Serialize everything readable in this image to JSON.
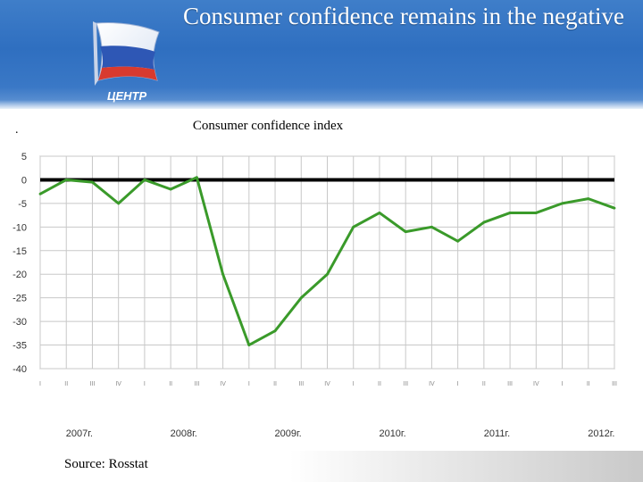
{
  "slide": {
    "title": "Consumer confidence remains in the negative",
    "logo_text": "ЦЕНТР",
    "marker": ".",
    "source": "Source: Rosstat"
  },
  "colors": {
    "header_blue": "#2f6fc0",
    "line_green": "#3a9a2a",
    "zero_line": "#000000",
    "grid": "#c8c8c8"
  },
  "chart_data": {
    "type": "line",
    "title": "Consumer confidence index",
    "xlabel": "",
    "ylabel": "",
    "ylim": [
      -40,
      5
    ],
    "y_ticks": [
      5,
      0,
      -5,
      -10,
      -15,
      -20,
      -25,
      -30,
      -35,
      -40
    ],
    "grid": true,
    "categories": [
      "I",
      "II",
      "III",
      "IV",
      "I",
      "II",
      "III",
      "IV",
      "I",
      "II",
      "III",
      "IV",
      "I",
      "II",
      "III",
      "IV",
      "I",
      "II",
      "III",
      "IV",
      "I",
      "II",
      "III"
    ],
    "year_labels": [
      {
        "label": "2007г.",
        "start_index": 0
      },
      {
        "label": "2008г.",
        "start_index": 4
      },
      {
        "label": "2009г.",
        "start_index": 8
      },
      {
        "label": "2010г.",
        "start_index": 12
      },
      {
        "label": "2011г.",
        "start_index": 16
      },
      {
        "label": "2012г.",
        "start_index": 20
      }
    ],
    "series": [
      {
        "values": [
          -3,
          0,
          -0.5,
          -5,
          0,
          -2,
          0.5,
          -20,
          -35,
          -32,
          -25,
          -20,
          -10,
          -7,
          -11,
          -10,
          -13,
          -9,
          -7,
          -7,
          -5,
          -4,
          -6
        ],
        "color": "#3a9a2a"
      }
    ],
    "reference_line": {
      "value": 0,
      "color": "#000000"
    }
  }
}
